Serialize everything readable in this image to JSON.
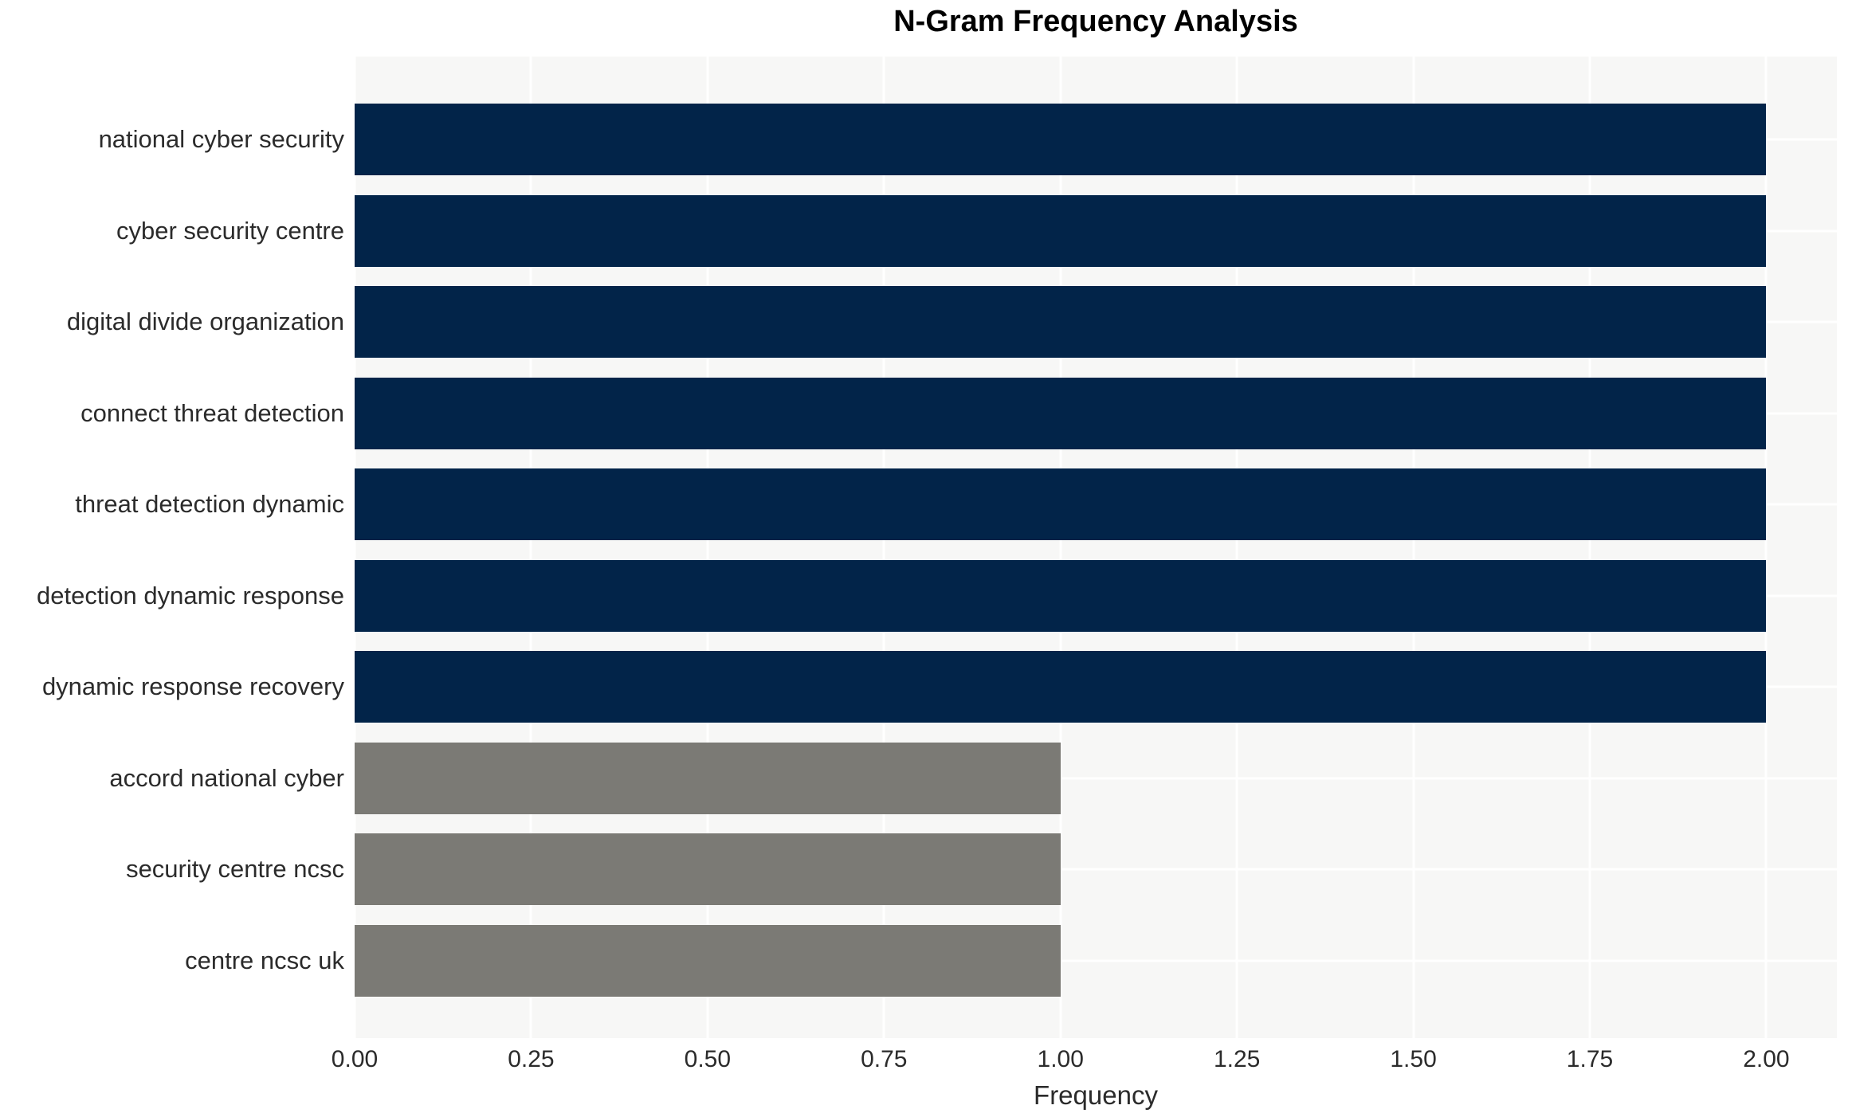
{
  "chart_data": {
    "type": "bar",
    "orientation": "horizontal",
    "title": "N-Gram Frequency Analysis",
    "xlabel": "Frequency",
    "ylabel": "",
    "categories": [
      "national cyber security",
      "cyber security centre",
      "digital divide organization",
      "connect threat detection",
      "threat detection dynamic",
      "detection dynamic response",
      "dynamic response recovery",
      "accord national cyber",
      "security centre ncsc",
      "centre ncsc uk"
    ],
    "values": [
      2,
      2,
      2,
      2,
      2,
      2,
      2,
      1,
      1,
      1
    ],
    "bar_colors": [
      "#022449",
      "#022449",
      "#022449",
      "#022449",
      "#022449",
      "#022449",
      "#022449",
      "#7b7a75",
      "#7b7a75",
      "#7b7a75"
    ],
    "xlim": [
      0,
      2.1
    ],
    "xticks": [
      "0.00",
      "0.25",
      "0.50",
      "0.75",
      "1.00",
      "1.25",
      "1.50",
      "1.75",
      "2.00"
    ],
    "xtick_values": [
      0,
      0.25,
      0.5,
      0.75,
      1.0,
      1.25,
      1.5,
      1.75,
      2.0
    ],
    "grid": true,
    "legend": false
  },
  "style": {
    "high_bar_color": "#022449",
    "low_bar_color": "#7b7a75",
    "plot_background": "#f7f7f6",
    "grid_color": "#ffffff",
    "text_color": "#2b2b2b",
    "title_color": "#000000"
  }
}
